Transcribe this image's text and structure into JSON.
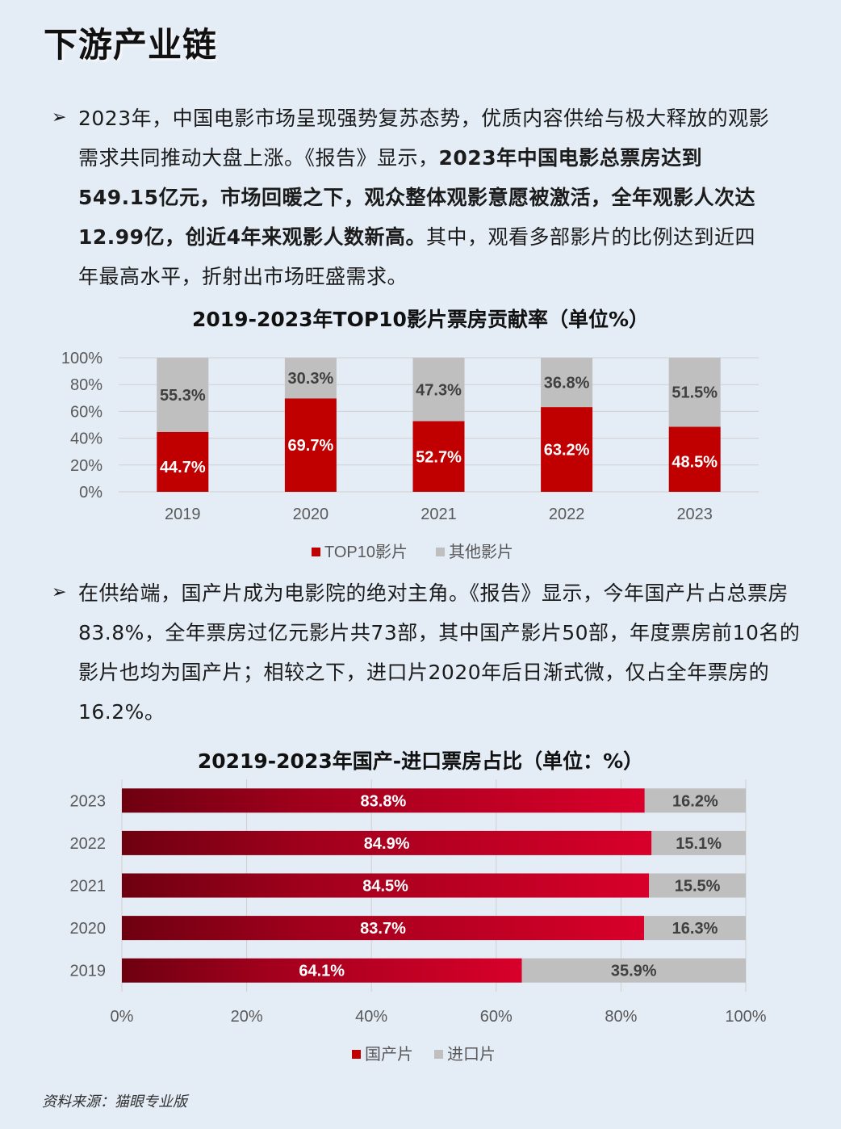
{
  "page": {
    "title": "下游产业链",
    "bullet": "➢",
    "para1": {
      "p1": "2023年，中国电影市场呈现强势复苏态势，优质内容供给与极大释放的观影需求共同推动大盘上涨。《报告》显示，",
      "b1": "2023年中国电影总票房达到549.15亿元，市场回暖之下，观众整体观影意愿被激活，全年观影人次达12.99亿，创近4年来观影人数新高。",
      "p2": "其中，观看多部影片的比例达到近四年最高水平，折射出市场旺盛需求。"
    },
    "para2": "在供给端，国产片成为电影院的绝对主角。《报告》显示，今年国产片占总票房83.8%，全年票房过亿元影片共73部，其中国产影片50部，年度票房前10名的影片也均为国产片；相较之下，进口片2020年后日渐式微，仅占全年票房的16.2%。",
    "source": "资料来源：猫眼专业版"
  },
  "chart_data": [
    {
      "type": "bar",
      "stacked": true,
      "orientation": "vertical",
      "title": "2019-2023年TOP10影片票房贡献率（单位%）",
      "categories": [
        "2019",
        "2020",
        "2021",
        "2022",
        "2023"
      ],
      "series": [
        {
          "name": "TOP10影片",
          "values": [
            44.7,
            69.7,
            52.7,
            63.2,
            48.5
          ],
          "labels": [
            "44.7%",
            "69.7%",
            "52.7%",
            "63.2%",
            "48.5%"
          ],
          "color": "#c00000"
        },
        {
          "name": "其他影片",
          "values": [
            55.3,
            30.3,
            47.3,
            36.8,
            51.5
          ],
          "labels": [
            "55.3%",
            "30.3%",
            "47.3%",
            "36.8%",
            "51.5%"
          ],
          "color": "#bfbfbf"
        }
      ],
      "ylim": [
        0,
        100
      ],
      "yticks": [
        "0%",
        "20%",
        "40%",
        "60%",
        "80%",
        "100%"
      ],
      "grid": true,
      "legend": "bottom"
    },
    {
      "type": "bar",
      "stacked": true,
      "orientation": "horizontal",
      "title": "20219-2023年国产-进口票房占比（单位：%）",
      "categories": [
        "2023",
        "2022",
        "2021",
        "2020",
        "2019"
      ],
      "series": [
        {
          "name": "国产片",
          "values": [
            83.8,
            84.9,
            84.5,
            83.7,
            64.1
          ],
          "labels": [
            "83.8%",
            "84.9%",
            "84.5%",
            "83.7%",
            "64.1%"
          ],
          "color": "#c00000"
        },
        {
          "name": "进口片",
          "values": [
            16.2,
            15.1,
            15.5,
            16.3,
            35.9
          ],
          "labels": [
            "16.2%",
            "15.1%",
            "15.5%",
            "16.3%",
            "35.9%"
          ],
          "color": "#bfbfbf"
        }
      ],
      "xlim": [
        0,
        100
      ],
      "xticks": [
        "0%",
        "20%",
        "40%",
        "60%",
        "80%",
        "100%"
      ],
      "grid": true,
      "legend": "bottom"
    }
  ]
}
